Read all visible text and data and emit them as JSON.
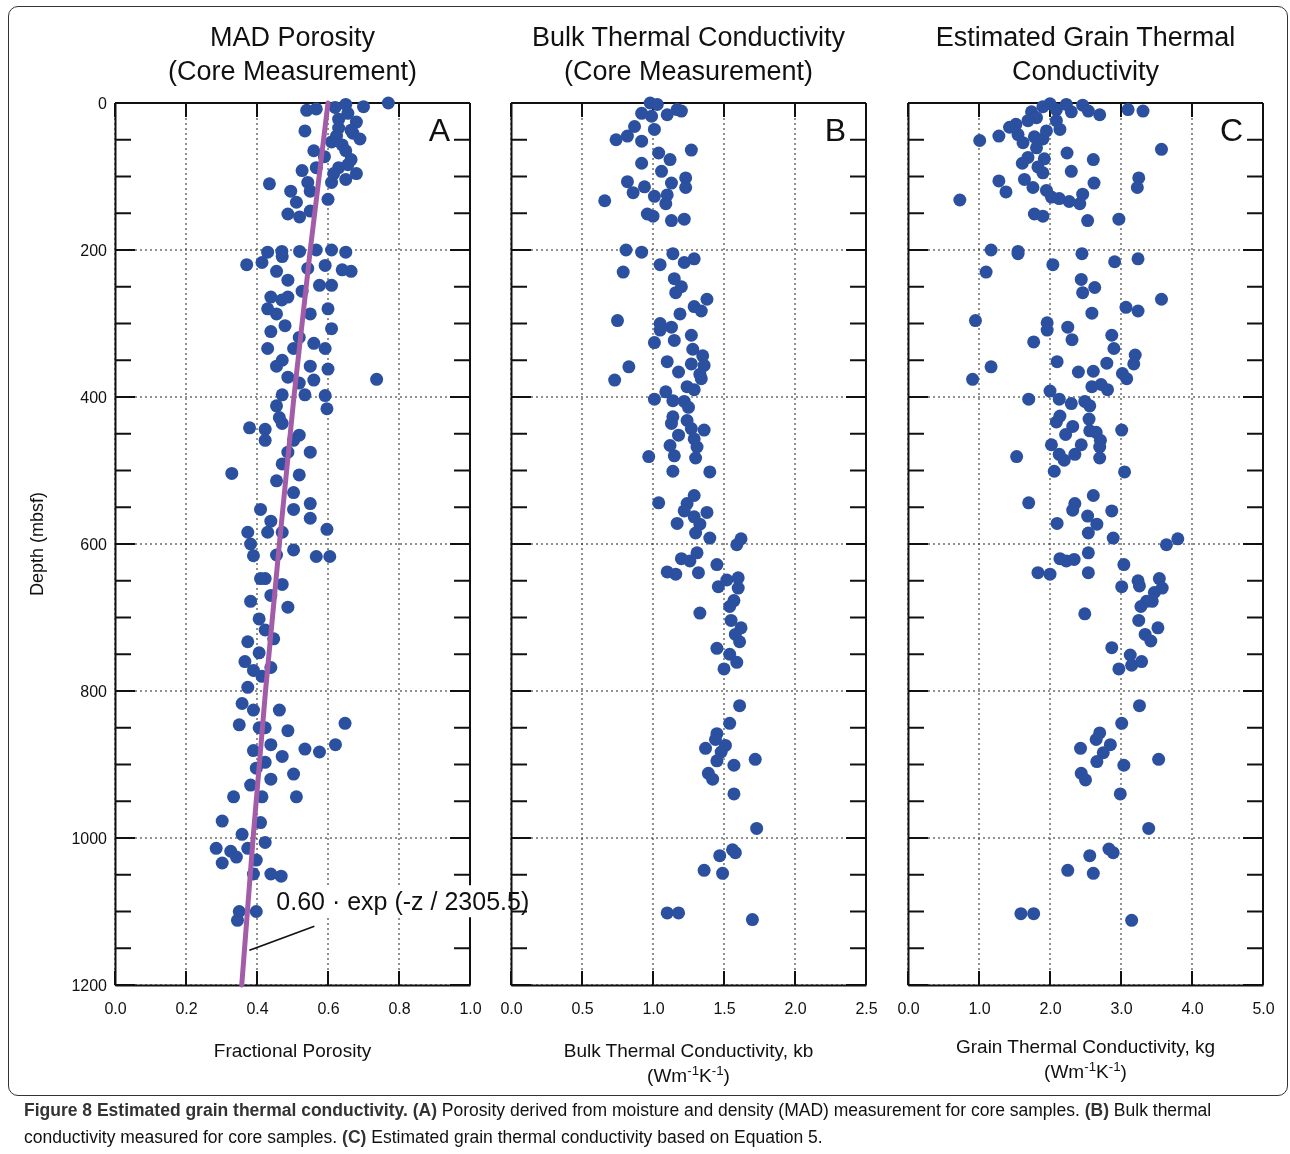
{
  "chart_data": [
    {
      "type": "scatter",
      "title": "MAD Porosity\n(Core Measurement)",
      "xlabel": "Fractional Porosity",
      "ylabel": "Depth (mbsf)",
      "xlim": [
        0,
        1
      ],
      "xticks": [
        {
          "value": 0,
          "label": "0.0"
        },
        {
          "value": 0.2,
          "label": "0.2"
        },
        {
          "value": 0.4,
          "label": "0.4"
        },
        {
          "value": 0.6,
          "label": "0.6"
        },
        {
          "value": 0.8,
          "label": "0.8"
        },
        {
          "value": 1,
          "label": "1.0"
        }
      ],
      "ylim": [
        1200,
        0
      ],
      "yticks": [
        0,
        {
          "value": 50,
          "label": null
        },
        {
          "value": 100,
          "label": null
        },
        {
          "value": 150,
          "label": null
        },
        200,
        {
          "value": 250,
          "label": null
        },
        {
          "value": 300,
          "label": null
        },
        {
          "value": 350,
          "label": null
        },
        400,
        {
          "value": 450,
          "label": null
        },
        {
          "value": 500,
          "label": null
        },
        {
          "value": 550,
          "label": null
        },
        600,
        {
          "value": 650,
          "label": null
        },
        {
          "value": 700,
          "label": null
        },
        {
          "value": 750,
          "label": null
        },
        800,
        {
          "value": 850,
          "label": null
        },
        {
          "value": 900,
          "label": null
        },
        {
          "value": 950,
          "label": null
        },
        1000,
        {
          "value": 1050,
          "label": null
        },
        {
          "value": 1100,
          "label": null
        },
        {
          "value": 1150,
          "label": null
        },
        1200
      ],
      "grid": true,
      "marker": "circle",
      "series": [
        {
          "color": "#2b50a0",
          "x": [
            0.77,
            0.7,
            0.65,
            0.62,
            0.54,
            0.567,
            0.656,
            0.68,
            0.535,
            0.63,
            0.67,
            0.69,
            0.61,
            0.65,
            0.56,
            0.665,
            0.59,
            0.567,
            0.63,
            0.68,
            0.65,
            0.435,
            0.527,
            0.543,
            0.61,
            0.495,
            0.55,
            0.6,
            0.511,
            0.487,
            0.52,
            0.55,
            0.371,
            0.414,
            0.43,
            0.47,
            0.52,
            0.567,
            0.61,
            0.65,
            0.665,
            0.64,
            0.592,
            0.543,
            0.455,
            0.487,
            0.439,
            0.47,
            0.43,
            0.527,
            0.576,
            0.61,
            0.6,
            0.55,
            0.439,
            0.479,
            0.61,
            0.519,
            0.56,
            0.592,
            0.43,
            0.455,
            0.55,
            0.6,
            0.737,
            0.487,
            0.519,
            0.56,
            0.471,
            0.535,
            0.592,
            0.597,
            0.455,
            0.379,
            0.423,
            0.471,
            0.519,
            0.55,
            0.503,
            0.329,
            0.423,
            0.471,
            0.519,
            0.503,
            0.55,
            0.503,
            0.41,
            0.55,
            0.374,
            0.43,
            0.471,
            0.597,
            0.382,
            0.567,
            0.605,
            0.503,
            0.455,
            0.39,
            0.423,
            0.471,
            0.382,
            0.439,
            0.487,
            0.406,
            0.374,
            0.447,
            0.406,
            0.366,
            0.439,
            0.414,
            0.374,
            0.358,
            0.39,
            0.463,
            0.35,
            0.648,
            0.423,
            0.487,
            0.535,
            0.576,
            0.621,
            0.439,
            0.39,
            0.471,
            0.503,
            0.398,
            0.439,
            0.511,
            0.334,
            0.382,
            0.302,
            0.358,
            0.41,
            0.285,
            0.326,
            0.374,
            0.302,
            0.342,
            0.398,
            0.423,
            0.39,
            0.468,
            0.439,
            0.35,
            0.398,
            0.345,
            0.63,
            0.665,
            0.624,
            0.64,
            0.656,
            0.616,
            0.471,
            0.487,
            0.455,
            0.503,
            0.471,
            0.463,
            0.487,
            0.455,
            0.439,
            0.41,
            0.423,
            0.39,
            0.406,
            0.423,
            0.414
          ],
          "values": [
            0,
            5,
            2,
            6,
            10,
            8,
            14,
            26,
            38,
            34,
            41,
            49,
            53,
            65,
            65,
            77,
            73,
            88,
            88,
            96,
            104,
            110,
            92,
            108,
            108,
            120,
            120,
            131,
            135,
            151,
            155,
            147,
            220,
            217,
            203,
            202,
            202,
            200,
            200,
            203,
            229,
            227,
            221,
            225,
            229,
            241,
            264,
            268,
            280,
            256,
            248,
            248,
            280,
            287,
            311,
            303,
            307,
            319,
            327,
            334,
            334,
            358,
            358,
            362,
            376,
            373,
            381,
            377,
            397,
            397,
            398,
            416,
            412,
            442,
            444,
            436,
            452,
            475,
            459,
            504,
            459,
            491,
            506,
            530,
            545,
            553,
            553,
            565,
            584,
            584,
            584,
            580,
            600,
            617,
            617,
            608,
            615,
            616,
            647,
            655,
            678,
            670,
            686,
            702,
            733,
            729,
            748,
            760,
            768,
            780,
            795,
            817,
            826,
            826,
            846,
            844,
            850,
            854,
            879,
            883,
            873,
            873,
            881,
            889,
            913,
            905,
            920,
            944,
            944,
            928,
            977,
            995,
            979,
            1014,
            1018,
            1014,
            1034,
            1026,
            1030,
            1006,
            1049,
            1052,
            1049,
            1100,
            1100,
            1112,
            22,
            37,
            45,
            57,
            84,
            96,
            209,
            264,
            287,
            334,
            350,
            428,
            475,
            514,
            569,
            647,
            717,
            772,
            850,
            897,
            944
          ]
        },
        {
          "type": "line",
          "color": "#a35ca8",
          "line_style": "solid",
          "marker": "none",
          "x": [
            0.6,
            0.55,
            0.504,
            0.463,
            0.424,
            0.389,
            0.357
          ],
          "values": [
            0,
            200,
            400,
            600,
            800,
            1000,
            1200
          ]
        }
      ],
      "annotations": [
        "A",
        {
          "text": "0.60 · exp (-z / 2305.5)",
          "x": 0.37,
          "y": 1150
        },
        "Figure 8 Estimated grain thermal conductivity.",
        "(A) Porosity derived from moisture and density (MAD) measurement for core samples. (B) Bulk thermal conductivity measured for core samples. (C) Estimated grain thermal conductivity based on Equation 5."
      ]
    },
    {
      "type": "scatter",
      "title": "Bulk Thermal Conductivity\n(Core Measurement)",
      "xlabel": "Bulk Thermal Conductivity, kb\n(Wm$^{-1}$K$^{-1}$)",
      "xlim": [
        0,
        2.5
      ],
      "xticks": [
        {
          "value": 0,
          "label": "0.0"
        },
        {
          "value": 0.5,
          "label": "0.5"
        },
        {
          "value": 1,
          "label": "1.0"
        },
        {
          "value": 1.5,
          "label": "1.5"
        },
        {
          "value": 2,
          "label": "2.0"
        },
        {
          "value": 2.5,
          "label": "2.5"
        }
      ],
      "ylim": [
        1200,
        0
      ],
      "yticks": [
        0,
        {
          "value": 50,
          "label": null
        },
        {
          "value": 100,
          "label": null
        },
        {
          "value": 150,
          "label": null
        },
        200,
        {
          "value": 250,
          "label": null
        },
        {
          "value": 300,
          "label": null
        },
        {
          "value": 350,
          "label": null
        },
        400,
        {
          "value": 450,
          "label": null
        },
        {
          "value": 500,
          "label": null
        },
        {
          "value": 550,
          "label": null
        },
        600,
        {
          "value": 650,
          "label": null
        },
        {
          "value": 700,
          "label": null
        },
        {
          "value": 750,
          "label": null
        },
        800,
        {
          "value": 850,
          "label": null
        },
        {
          "value": 900,
          "label": null
        },
        {
          "value": 950,
          "label": null
        },
        1000,
        {
          "value": 1050,
          "label": null
        },
        {
          "value": 1100,
          "label": null
        },
        {
          "value": 1150,
          "label": null
        },
        1200
      ],
      "grid": true,
      "marker": "circle",
      "tick_labels": "x",
      "series": [
        {
          "color": "#2b50a0",
          "x": [
            0.98,
            1.03,
            1.17,
            1.2,
            1.1,
            0.92,
            0.99,
            0.87,
            1.01,
            0.82,
            0.74,
            0.92,
            1.27,
            1.04,
            1.12,
            0.92,
            1.06,
            1.23,
            0.82,
            1.13,
            1.23,
            0.86,
            0.94,
            0.66,
            1.01,
            1.1,
            1.09,
            0.96,
            1.0,
            1.13,
            1.22,
            0.81,
            0.92,
            1.14,
            1.05,
            1.22,
            1.29,
            0.79,
            1.15,
            1.2,
            1.16,
            1.38,
            1.29,
            1.34,
            1.19,
            0.75,
            1.05,
            1.13,
            1.05,
            1.27,
            1.01,
            1.15,
            1.28,
            1.35,
            1.1,
            1.27,
            1.36,
            0.83,
            1.18,
            1.33,
            0.73,
            1.34,
            1.24,
            1.29,
            1.09,
            1.01,
            1.14,
            1.22,
            1.25,
            1.14,
            1.24,
            1.13,
            1.27,
            1.36,
            1.18,
            1.29,
            1.12,
            1.31,
            0.97,
            1.15,
            1.3,
            1.14,
            1.4,
            1.29,
            1.04,
            1.24,
            1.38,
            1.22,
            1.29,
            1.33,
            1.17,
            1.3,
            1.4,
            1.62,
            1.59,
            1.31,
            1.2,
            1.26,
            1.1,
            1.16,
            1.32,
            1.45,
            1.46,
            1.52,
            1.6,
            1.6,
            1.57,
            1.54,
            1.33,
            1.55,
            1.62,
            1.58,
            1.61,
            1.45,
            1.54,
            1.59,
            1.5,
            1.61,
            1.54,
            1.45,
            1.44,
            1.51,
            1.37,
            1.48,
            1.72,
            1.45,
            1.57,
            1.39,
            1.42,
            1.57,
            1.73,
            1.56,
            1.58,
            1.47,
            1.36,
            1.49,
            1.1,
            1.18,
            1.7
          ],
          "values": [
            0,
            2,
            9,
            11,
            16,
            14,
            18,
            32,
            36,
            45,
            50,
            52,
            64,
            68,
            77,
            82,
            93,
            102,
            107,
            109,
            115,
            122,
            114,
            133,
            127,
            125,
            137,
            151,
            154,
            160,
            158,
            200,
            203,
            205,
            220,
            217,
            212,
            230,
            239,
            250,
            258,
            267,
            277,
            283,
            287,
            296,
            300,
            305,
            309,
            316,
            326,
            323,
            335,
            344,
            352,
            355,
            357,
            359,
            366,
            369,
            377,
            375,
            386,
            390,
            393,
            403,
            405,
            406,
            414,
            427,
            432,
            436,
            443,
            445,
            452,
            457,
            466,
            468,
            481,
            480,
            483,
            501,
            502,
            534,
            544,
            545,
            557,
            555,
            563,
            573,
            572,
            585,
            592,
            593,
            601,
            612,
            620,
            623,
            638,
            641,
            639,
            628,
            658,
            649,
            646,
            660,
            677,
            685,
            694,
            704,
            714,
            723,
            733,
            742,
            750,
            761,
            770,
            820,
            844,
            858,
            866,
            874,
            878,
            883,
            893,
            895,
            901,
            912,
            920,
            940,
            987,
            1016,
            1020,
            1024,
            1044,
            1048,
            1102,
            1102,
            1111
          ]
        }
      ],
      "annotations": [
        "B"
      ]
    },
    {
      "type": "scatter",
      "title": "Estimated Grain Thermal\nConductivity",
      "xlabel": "Grain Thermal Conductivity, kg\n(Wm$^{-1}$K$^{-1}$)",
      "xlim": [
        0,
        5
      ],
      "xticks": [
        {
          "value": 0,
          "label": "0.0"
        },
        {
          "value": 1,
          "label": "1.0"
        },
        {
          "value": 2,
          "label": "2.0"
        },
        {
          "value": 3,
          "label": "3.0"
        },
        {
          "value": 4,
          "label": "4.0"
        },
        {
          "value": 5,
          "label": "5.0"
        }
      ],
      "ylim": [
        1200,
        0
      ],
      "yticks": [
        0,
        {
          "value": 50,
          "label": null
        },
        {
          "value": 100,
          "label": null
        },
        {
          "value": 150,
          "label": null
        },
        200,
        {
          "value": 250,
          "label": null
        },
        {
          "value": 300,
          "label": null
        },
        {
          "value": 350,
          "label": null
        },
        400,
        {
          "value": 450,
          "label": null
        },
        {
          "value": 500,
          "label": null
        },
        {
          "value": 550,
          "label": null
        },
        600,
        {
          "value": 650,
          "label": null
        },
        {
          "value": 700,
          "label": null
        },
        {
          "value": 750,
          "label": null
        },
        800,
        {
          "value": 850,
          "label": null
        },
        {
          "value": 900,
          "label": null
        },
        {
          "value": 950,
          "label": null
        },
        1000,
        {
          "value": 1050,
          "label": null
        },
        {
          "value": 1100,
          "label": null
        },
        {
          "value": 1150,
          "label": null
        },
        1200
      ],
      "grid": true,
      "marker": "circle",
      "tick_labels": "x",
      "series": [
        {
          "color": "#2b50a0",
          "x": [
            2.0,
            1.9,
            2.23,
            2.46,
            2.09,
            2.3,
            2.54,
            2.7,
            3.1,
            3.31,
            1.74,
            1.81,
            1.69,
            2.09,
            2.14,
            1.52,
            1.43,
            1.95,
            1.55,
            1.01,
            1.28,
            1.78,
            1.9,
            1.62,
            1.81,
            2.24,
            3.57,
            2.61,
            1.69,
            1.92,
            1.61,
            1.83,
            1.9,
            2.3,
            1.28,
            1.64,
            2.62,
            3.25,
            3.23,
            1.38,
            1.76,
            1.95,
            2.02,
            2.13,
            2.27,
            2.42,
            2.46,
            0.73,
            1.78,
            1.9,
            2.53,
            2.97,
            1.17,
            1.55,
            1.55,
            2.45,
            2.04,
            2.91,
            3.24,
            1.1,
            2.44,
            2.63,
            2.46,
            3.57,
            3.07,
            3.24,
            2.59,
            0.95,
            1.96,
            2.25,
            1.96,
            2.87,
            2.31,
            1.77,
            2.9,
            3.2,
            3.18,
            2.1,
            1.17,
            2.8,
            2.61,
            2.4,
            3.02,
            3.08,
            0.91,
            2.59,
            2.72,
            2.81,
            2.0,
            2.13,
            1.7,
            2.3,
            2.49,
            2.56,
            2.14,
            2.09,
            2.55,
            2.32,
            2.56,
            2.22,
            2.65,
            3.01,
            2.44,
            2.71,
            2.02,
            2.7,
            2.35,
            2.13,
            2.2,
            1.53,
            2.7,
            2.06,
            3.05,
            2.61,
            1.7,
            2.35,
            2.32,
            2.87,
            2.53,
            2.1,
            2.66,
            2.54,
            2.89,
            3.8,
            3.64,
            2.54,
            2.14,
            2.23,
            2.34,
            1.83,
            2.0,
            2.54,
            3.04,
            3.01,
            3.24,
            3.26,
            3.54,
            3.58,
            3.47,
            3.36,
            3.44,
            3.28,
            2.49,
            3.25,
            3.52,
            3.34,
            3.42,
            2.87,
            3.13,
            3.15,
            3.29,
            2.97,
            3.26,
            3.01,
            2.7,
            2.65,
            2.85,
            2.43,
            2.75,
            3.53,
            2.66,
            3.04,
            2.44,
            2.5,
            2.99,
            3.39,
            2.83,
            2.89,
            2.56,
            2.25,
            2.61,
            1.59,
            1.77,
            3.15
          ],
          "values": [
            1,
            5,
            2,
            3,
            9,
            12,
            11,
            16,
            9,
            11,
            12,
            20,
            24,
            24,
            36,
            29,
            33,
            38,
            43,
            51,
            45,
            46,
            49,
            54,
            61,
            68,
            63,
            77,
            74,
            76,
            82,
            87,
            95,
            93,
            106,
            104,
            109,
            102,
            115,
            121,
            115,
            119,
            128,
            130,
            134,
            137,
            124,
            132,
            151,
            154,
            160,
            158,
            200,
            202,
            205,
            205,
            220,
            216,
            212,
            230,
            240,
            251,
            258,
            267,
            278,
            283,
            286,
            296,
            299,
            305,
            309,
            316,
            322,
            325,
            334,
            343,
            355,
            352,
            359,
            354,
            365,
            366,
            368,
            375,
            376,
            386,
            383,
            390,
            392,
            403,
            403,
            409,
            406,
            412,
            426,
            434,
            430,
            440,
            446,
            451,
            448,
            445,
            465,
            459,
            465,
            468,
            478,
            478,
            486,
            481,
            483,
            501,
            502,
            534,
            544,
            545,
            554,
            555,
            562,
            572,
            573,
            585,
            592,
            593,
            601,
            612,
            620,
            623,
            621,
            639,
            641,
            639,
            628,
            658,
            650,
            657,
            647,
            660,
            666,
            678,
            678,
            685,
            695,
            704,
            714,
            723,
            732,
            741,
            751,
            765,
            760,
            770,
            820,
            844,
            857,
            866,
            873,
            878,
            884,
            893,
            896,
            901,
            912,
            921,
            940,
            987,
            1015,
            1020,
            1024,
            1044,
            1048,
            1103,
            1103,
            1112
          ]
        }
      ],
      "annotations": [
        "C"
      ]
    }
  ]
}
